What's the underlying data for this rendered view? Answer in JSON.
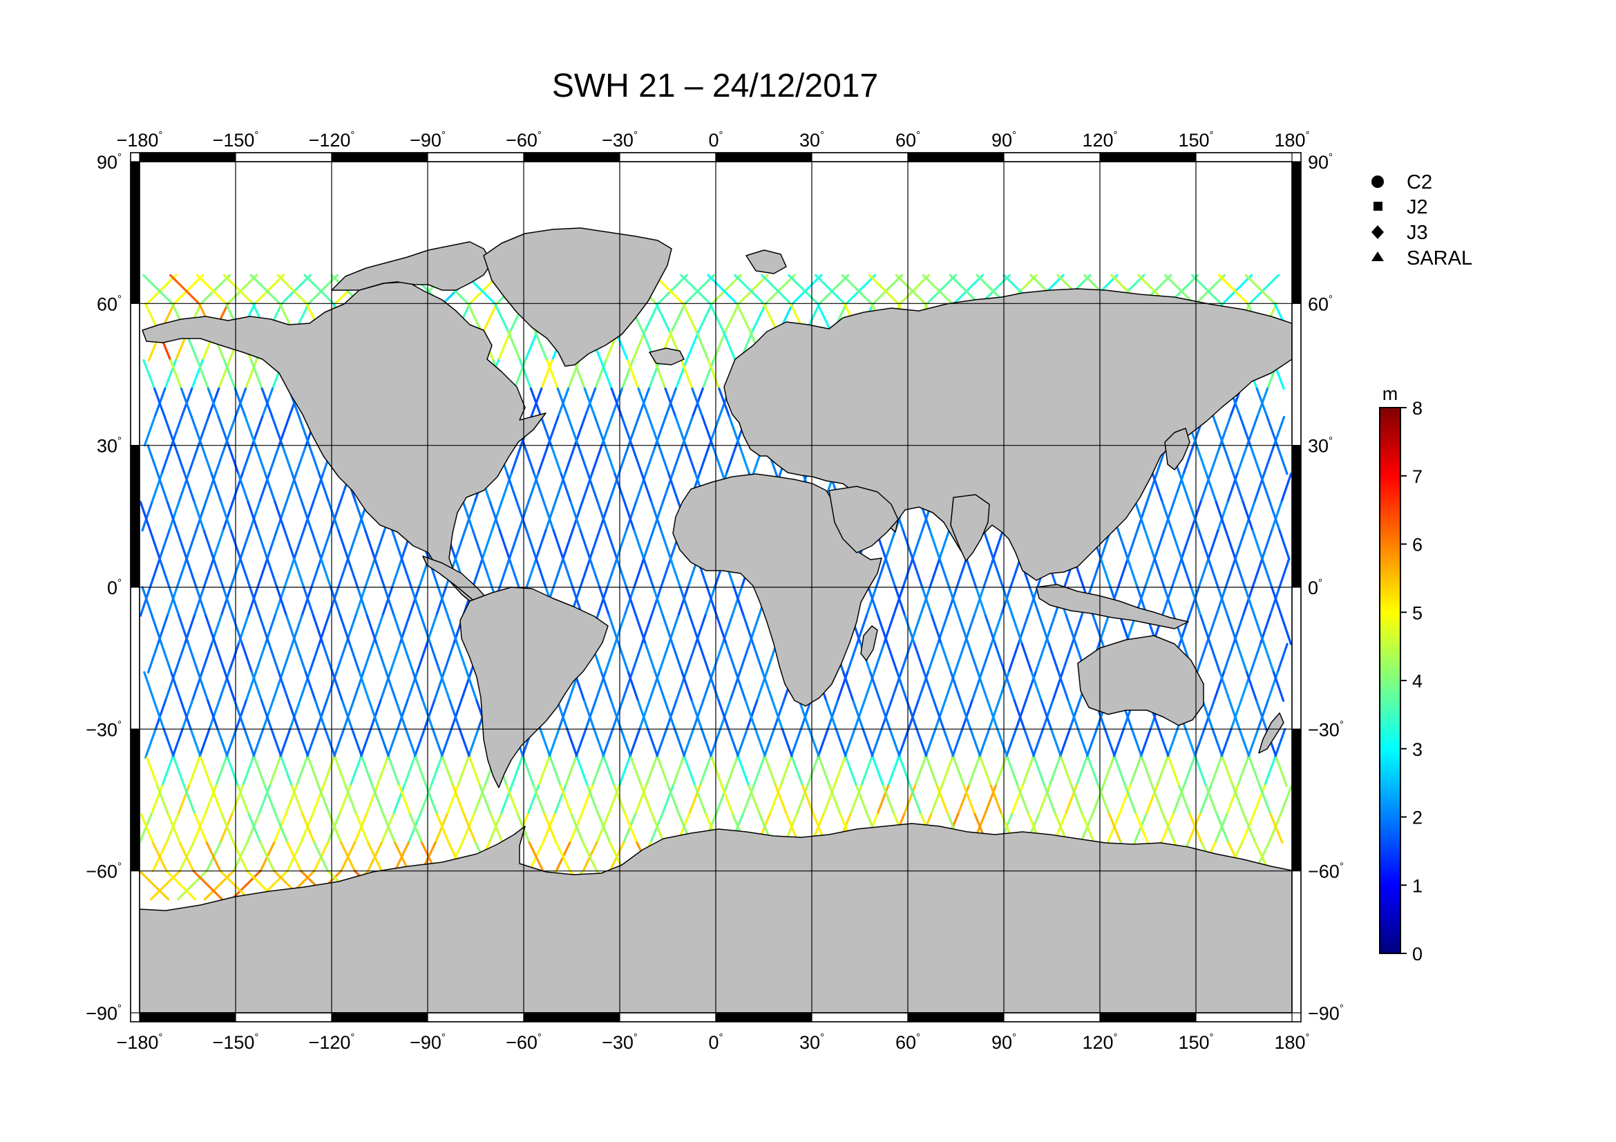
{
  "title": "SWH 21 – 24/12/2017",
  "map": {
    "lon_range": [
      -180,
      180
    ],
    "lat_range": [
      -90,
      90
    ],
    "lon_ticks": [
      -180,
      -150,
      -120,
      -90,
      -60,
      -30,
      0,
      30,
      60,
      90,
      120,
      150,
      180
    ],
    "lat_ticks": [
      90,
      60,
      30,
      0,
      -30,
      -60,
      -90
    ],
    "lon_tick_labels": [
      "−180",
      "−150",
      "−120",
      "−90",
      "−60",
      "−30",
      "0",
      "30",
      "60",
      "90",
      "120",
      "150",
      "180"
    ],
    "lat_tick_labels": [
      "90",
      "60",
      "30",
      "0",
      "−30",
      "−60",
      "−90"
    ],
    "degree_symbol": "°",
    "grid": true,
    "land_color": "#bebebe",
    "ocean_color": "#ffffff"
  },
  "legend": {
    "position": "top-right",
    "items": [
      {
        "label": "C2",
        "marker": "circle"
      },
      {
        "label": "J2",
        "marker": "square"
      },
      {
        "label": "J3",
        "marker": "diamond"
      },
      {
        "label": "SARAL",
        "marker": "triangle"
      }
    ]
  },
  "colorbar": {
    "unit": "m",
    "min": 0,
    "max": 8,
    "tick_labels": [
      "8",
      "7",
      "6",
      "5",
      "4",
      "3",
      "2",
      "1",
      "0"
    ],
    "colors": [
      "#00007f",
      "#0000ff",
      "#007fff",
      "#00ffff",
      "#7fff7f",
      "#ffff00",
      "#ff7f00",
      "#ff0000",
      "#7f0000"
    ]
  },
  "chart_data": {
    "type": "scatter",
    "title": "SWH 21 – 24/12/2017",
    "xlabel": "",
    "ylabel": "",
    "xlim": [
      -180,
      180
    ],
    "ylim": [
      -90,
      90
    ],
    "value_unit": "m",
    "value_range": [
      0,
      8
    ],
    "series": [
      {
        "name": "C2",
        "marker": "circle"
      },
      {
        "name": "J2",
        "marker": "square"
      },
      {
        "name": "J3",
        "marker": "diamond"
      },
      {
        "name": "SARAL",
        "marker": "triangle"
      }
    ]
  }
}
